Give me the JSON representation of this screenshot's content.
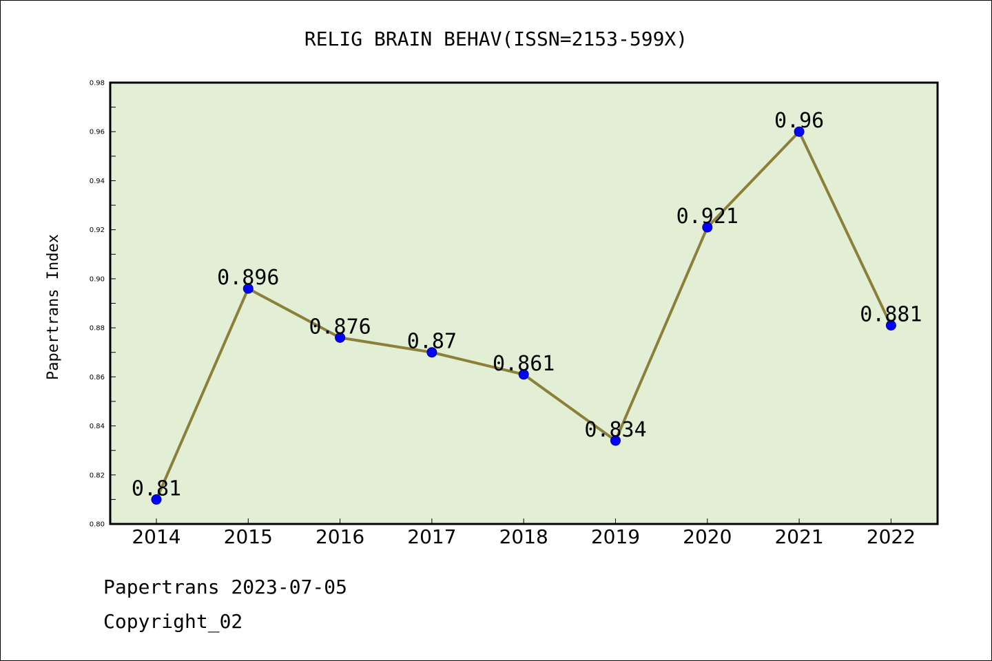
{
  "chart_data": {
    "type": "line",
    "title": "RELIG BRAIN BEHAV(ISSN=2153-599X)",
    "ylabel": "Papertrans Index",
    "xlabel": "",
    "categories": [
      "2014",
      "2015",
      "2016",
      "2017",
      "2018",
      "2019",
      "2020",
      "2021",
      "2022"
    ],
    "values": [
      0.81,
      0.896,
      0.876,
      0.87,
      0.861,
      0.834,
      0.921,
      0.96,
      0.881
    ],
    "data_labels": [
      "0.81",
      "0.896",
      "0.876",
      "0.87",
      "0.861",
      "0.834",
      "0.921",
      "0.96",
      "0.881"
    ],
    "ylim": [
      0.8,
      0.98
    ],
    "yticks": [
      "0.80",
      "0.82",
      "0.84",
      "0.86",
      "0.88",
      "0.90",
      "0.92",
      "0.94",
      "0.96",
      "0.98"
    ],
    "grid": false,
    "colors": {
      "plot_background": "#e2efd5",
      "line": "#8b8039",
      "marker": "#0000ff",
      "axes": "#000000"
    }
  },
  "footer": {
    "line1": "Papertrans 2023-07-05",
    "line2": "Copyright_02"
  }
}
